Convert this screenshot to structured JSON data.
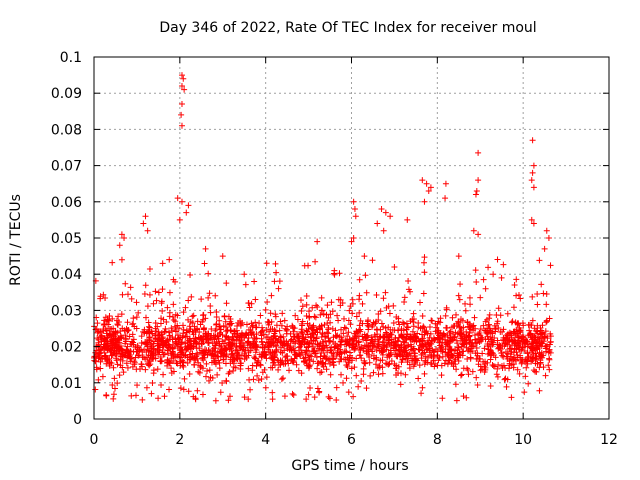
{
  "chart_data": {
    "type": "scatter",
    "title": "Day 346 of 2022, Rate Of TEC Index for receiver moul",
    "xlabel": "GPS time / hours",
    "ylabel": "ROTI / TECUs",
    "xlim": [
      0,
      12
    ],
    "ylim": [
      0,
      0.1
    ],
    "x_ticks": [
      0,
      2,
      4,
      6,
      8,
      10,
      12
    ],
    "x_tick_labels": [
      "0",
      "2",
      "4",
      "6",
      "8",
      "10",
      "12"
    ],
    "y_ticks": [
      0,
      0.01,
      0.02,
      0.03,
      0.04,
      0.05,
      0.06,
      0.07,
      0.08,
      0.09,
      0.1
    ],
    "y_tick_labels": [
      "0",
      "0.01",
      "0.02",
      "0.03",
      "0.04",
      "0.05",
      "0.06",
      "0.07",
      "0.08",
      "0.09",
      "0.1"
    ],
    "grid": true,
    "marker": "+",
    "marker_color": "#ff0000",
    "data_x_range": [
      0,
      10.65
    ],
    "typical_band": [
      0.01,
      0.03
    ],
    "series": [
      {
        "name": "ROTI",
        "points": [
          [
            2.05,
            0.095
          ],
          [
            2.08,
            0.094
          ],
          [
            2.05,
            0.092
          ],
          [
            2.1,
            0.091
          ],
          [
            2.05,
            0.087
          ],
          [
            2.03,
            0.084
          ],
          [
            2.05,
            0.081
          ],
          [
            10.22,
            0.077
          ],
          [
            8.95,
            0.0735
          ],
          [
            10.25,
            0.07
          ],
          [
            10.22,
            0.068
          ],
          [
            10.2,
            0.066
          ],
          [
            10.25,
            0.064
          ],
          [
            7.65,
            0.066
          ],
          [
            7.75,
            0.065
          ],
          [
            7.85,
            0.064
          ],
          [
            7.8,
            0.063
          ],
          [
            8.2,
            0.065
          ],
          [
            8.18,
            0.061
          ],
          [
            7.7,
            0.06
          ],
          [
            8.95,
            0.066
          ],
          [
            8.92,
            0.063
          ],
          [
            8.9,
            0.062
          ],
          [
            8.85,
            0.052
          ],
          [
            8.95,
            0.051
          ],
          [
            10.2,
            0.055
          ],
          [
            10.25,
            0.054
          ],
          [
            6.05,
            0.06
          ],
          [
            6.08,
            0.058
          ],
          [
            6.1,
            0.056
          ],
          [
            6.05,
            0.05
          ],
          [
            6.0,
            0.049
          ],
          [
            6.7,
            0.058
          ],
          [
            6.8,
            0.057
          ],
          [
            6.9,
            0.056
          ],
          [
            6.6,
            0.054
          ],
          [
            6.75,
            0.052
          ],
          [
            1.95,
            0.061
          ],
          [
            2.05,
            0.06
          ],
          [
            2.2,
            0.059
          ],
          [
            2.15,
            0.057
          ],
          [
            2.0,
            0.055
          ],
          [
            1.2,
            0.056
          ],
          [
            1.15,
            0.054
          ],
          [
            1.25,
            0.052
          ],
          [
            0.65,
            0.051
          ],
          [
            0.7,
            0.05
          ],
          [
            0.6,
            0.048
          ],
          [
            10.55,
            0.052
          ],
          [
            10.6,
            0.05
          ],
          [
            10.5,
            0.047
          ],
          [
            5.2,
            0.049
          ],
          [
            7.3,
            0.055
          ],
          [
            8.5,
            0.045
          ],
          [
            4.3,
            0.036
          ],
          [
            3.0,
            0.045
          ],
          [
            3.5,
            0.04
          ],
          [
            9.3,
            0.04
          ],
          [
            9.8,
            0.037
          ],
          [
            5.6,
            0.041
          ],
          [
            6.3,
            0.045
          ],
          [
            7.0,
            0.042
          ],
          [
            1.6,
            0.043
          ],
          [
            2.6,
            0.047
          ]
        ]
      }
    ]
  }
}
